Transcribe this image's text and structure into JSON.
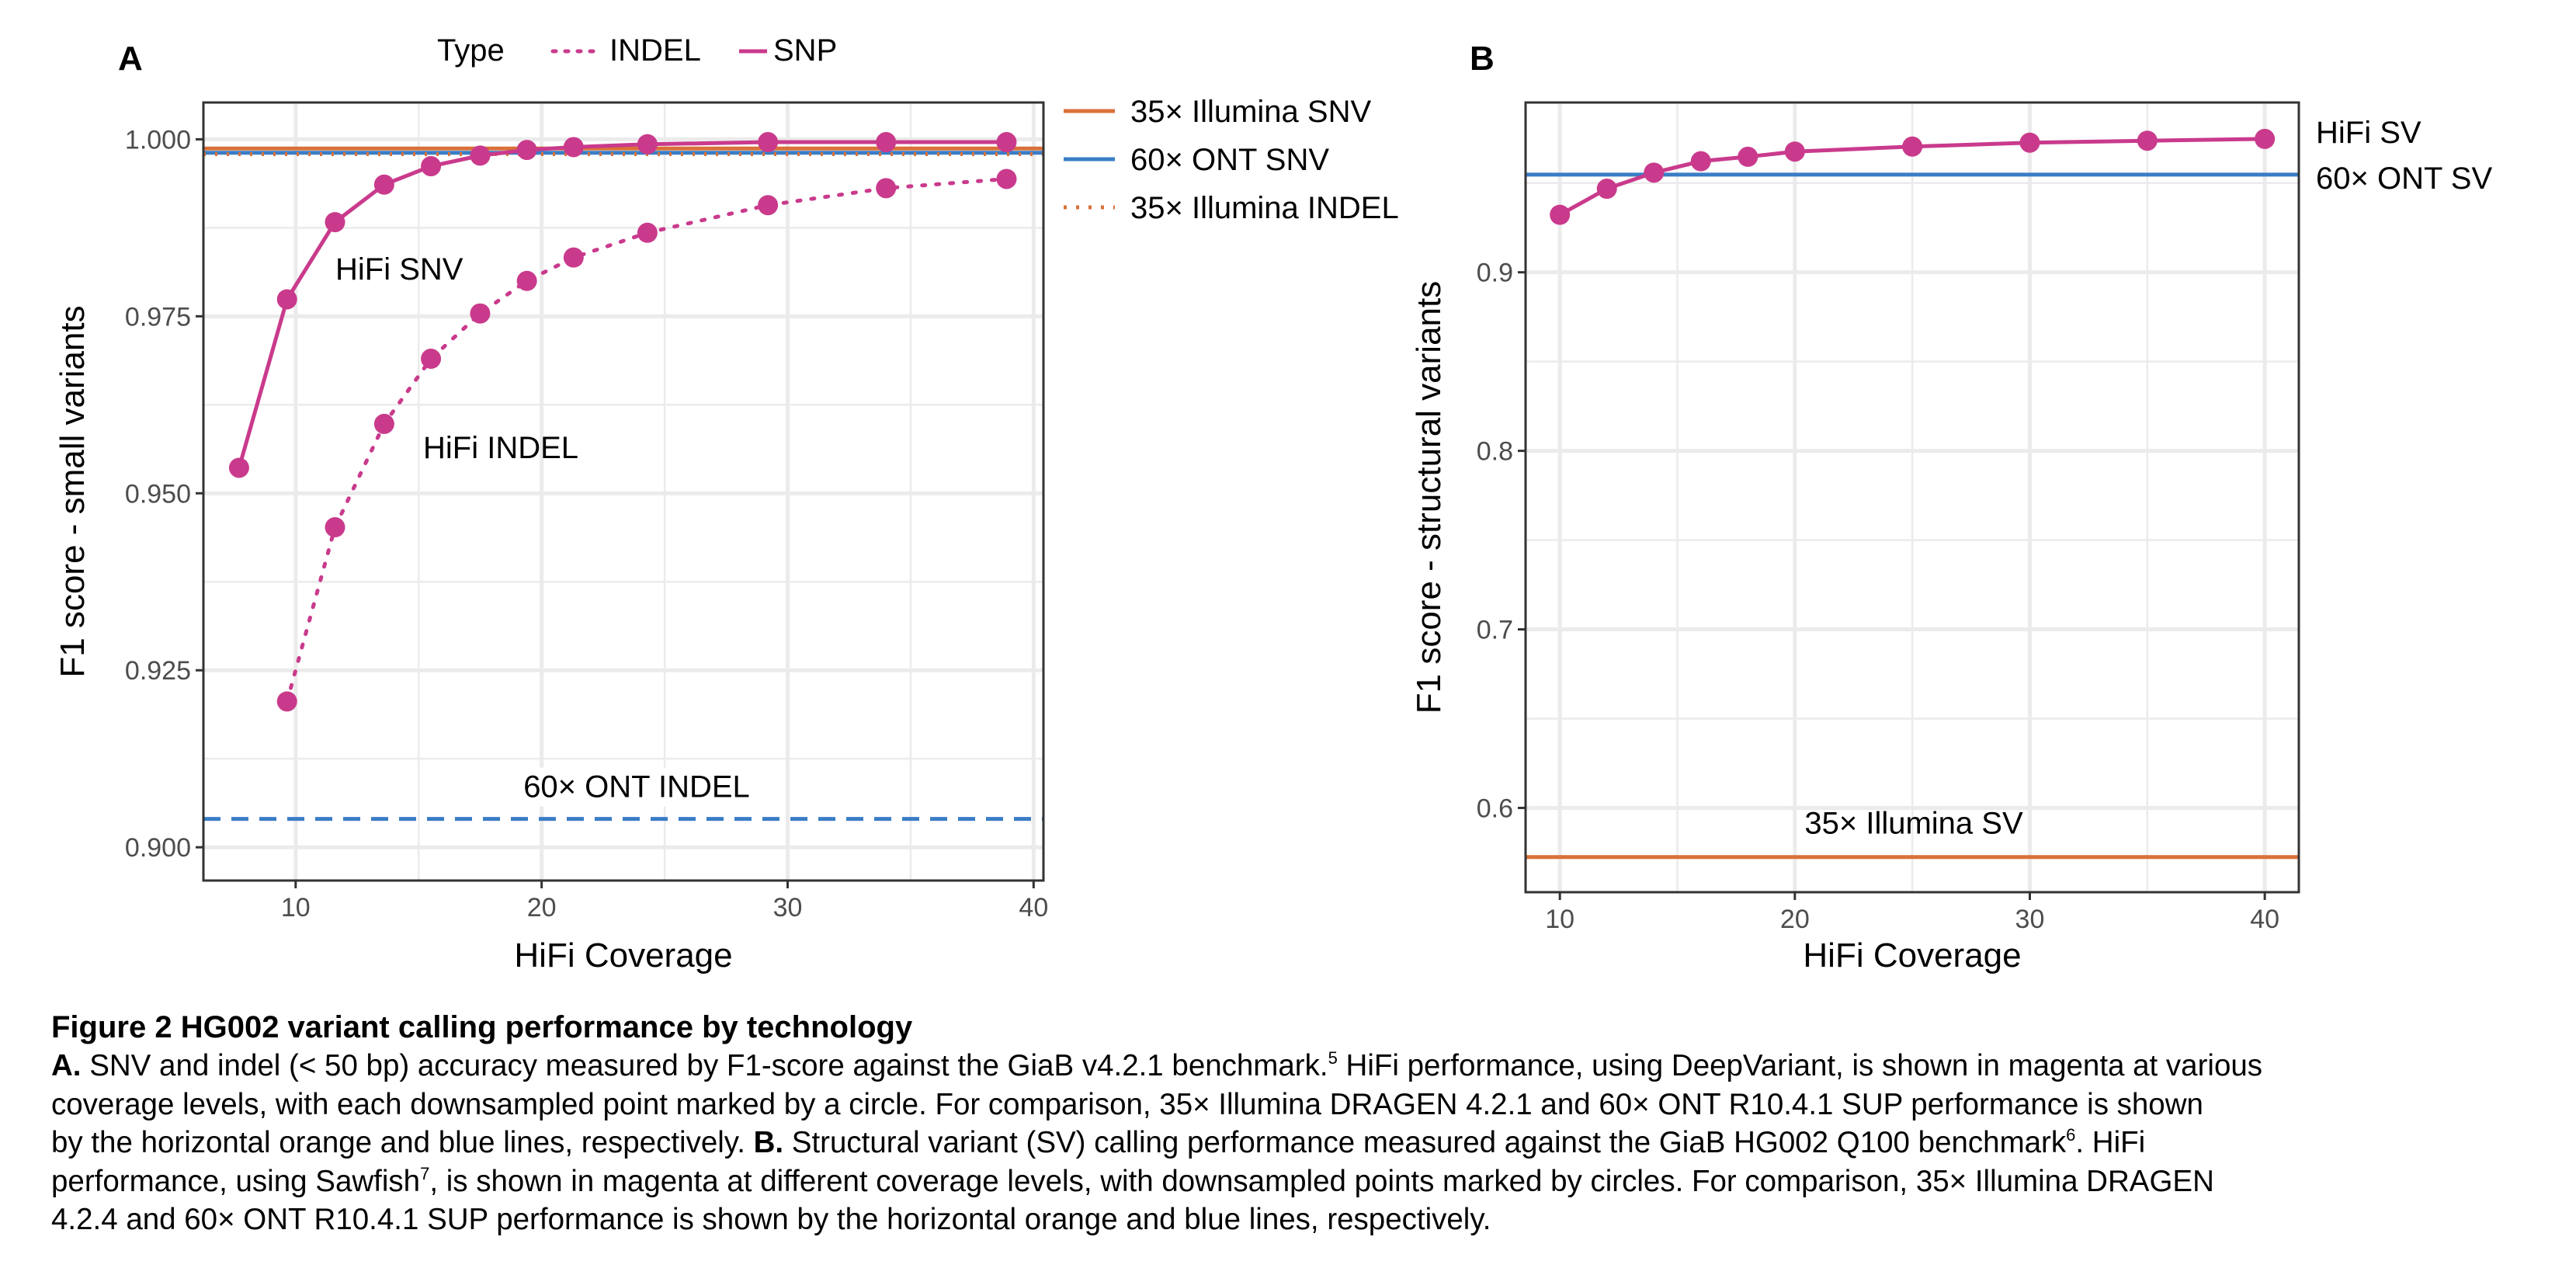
{
  "colors": {
    "hifi": "#C93A8C",
    "illumina": "#D9713A",
    "ont": "#3A7DC5",
    "grid": "#EBEBEB",
    "axis": "#333333",
    "tick_text": "#4D4D4D"
  },
  "type_legend": {
    "title": "Type",
    "items": [
      {
        "label": "INDEL",
        "style": "dotted"
      },
      {
        "label": "SNP",
        "style": "solid"
      }
    ]
  },
  "chart_data": [
    {
      "panel_label": "A",
      "type": "line",
      "xlabel": "HiFi Coverage",
      "ylabel": "F1 score - small variants",
      "xlim": [
        6.25,
        40.4
      ],
      "ylim": [
        0.8953,
        1.0052
      ],
      "xticks": [
        10,
        20,
        30,
        40
      ],
      "yticks": [
        0.9,
        0.925,
        0.95,
        0.975,
        1.0
      ],
      "ytick_labels": [
        "0.900",
        "0.925",
        "0.950",
        "0.975",
        "1.000"
      ],
      "grid": true,
      "series": [
        {
          "name": "SNP",
          "label": "HiFi SNV",
          "style": "solid",
          "x": [
            7.7,
            9.65,
            11.6,
            13.6,
            15.5,
            17.5,
            19.4,
            21.3,
            24.3,
            29.2,
            34.0,
            38.9
          ],
          "y": [
            0.9536,
            0.9774,
            0.9883,
            0.9936,
            0.9962,
            0.9977,
            0.9985,
            0.9989,
            0.9993,
            0.9996,
            0.9996,
            0.9996
          ]
        },
        {
          "name": "INDEL",
          "label": "HiFi INDEL",
          "style": "dotted",
          "x": [
            9.65,
            11.6,
            13.6,
            15.5,
            17.5,
            19.4,
            21.3,
            24.3,
            29.2,
            34.0,
            38.9
          ],
          "y": [
            0.9206,
            0.9452,
            0.9598,
            0.969,
            0.9754,
            0.98,
            0.9833,
            0.9868,
            0.9907,
            0.9931,
            0.9944
          ]
        }
      ],
      "reference_lines": [
        {
          "name": "35× Illumina SNV",
          "y": 0.9987,
          "color": "illumina",
          "style": "solid",
          "in_legend": true
        },
        {
          "name": "60× ONT SNV",
          "y": 0.9981,
          "color": "ont",
          "style": "solid",
          "in_legend": true
        },
        {
          "name": "35× Illumina INDEL",
          "y": 0.9979,
          "color": "illumina",
          "style": "dotted",
          "in_legend": true
        },
        {
          "name": "60× ONT INDEL",
          "y": 0.904,
          "color": "ont",
          "style": "dashed",
          "in_legend": false
        }
      ],
      "legend": "right"
    },
    {
      "panel_label": "B",
      "type": "line",
      "xlabel": "HiFi Coverage",
      "ylabel": "F1 score - structural variants",
      "xlim": [
        8.54,
        41.45
      ],
      "ylim": [
        0.5528,
        0.9951
      ],
      "xticks": [
        10,
        20,
        30,
        40
      ],
      "yticks": [
        0.6,
        0.7,
        0.8,
        0.9
      ],
      "ytick_labels": [
        "0.6",
        "0.7",
        "0.8",
        "0.9"
      ],
      "grid": true,
      "series": [
        {
          "name": "HiFi SV",
          "label": "HiFi SV",
          "style": "solid",
          "x": [
            10,
            12,
            14,
            16,
            18,
            20,
            25,
            30,
            35,
            40
          ],
          "y": [
            0.9322,
            0.9468,
            0.9558,
            0.9622,
            0.9647,
            0.9676,
            0.9704,
            0.9726,
            0.9737,
            0.9747
          ]
        }
      ],
      "reference_lines": [
        {
          "name": "60× ONT SV",
          "y": 0.9547,
          "color": "ont",
          "style": "solid"
        },
        {
          "name": "35× Illumina SV",
          "y": 0.5725,
          "color": "illumina",
          "style": "solid"
        }
      ]
    }
  ],
  "caption": {
    "title": "Figure 2 HG002 variant calling performance by technology",
    "lines": [
      [
        {
          "b": "A."
        },
        {
          "t": " SNV and indel (< 50 bp) accuracy measured by F1-score against the GiaB v4.2.1 benchmark."
        },
        {
          "sup": "5"
        },
        {
          "t": " HiFi performance, using DeepVariant, is shown in magenta at various"
        }
      ],
      [
        {
          "t": "coverage levels, with each downsampled point marked by a circle.  For comparison, 35× Illumina DRAGEN 4.2.1 and 60× ONT R10.4.1 SUP performance is shown"
        }
      ],
      [
        {
          "t": "by the horizontal orange and blue lines, respectively. "
        },
        {
          "b": "B."
        },
        {
          "t": " Structural variant (SV) calling performance measured against the GiaB HG002 Q100 benchmark"
        },
        {
          "sup": "6"
        },
        {
          "t": ".  HiFi"
        }
      ],
      [
        {
          "t": "performance, using Sawfish"
        },
        {
          "sup": "7"
        },
        {
          "t": ", is shown in magenta at different coverage levels, with downsampled points marked by circles. For comparison, 35× Illumina DRAGEN"
        }
      ],
      [
        {
          "t": "4.2.4 and 60× ONT R10.4.1 SUP performance is shown by the horizontal orange and blue lines, respectively."
        }
      ]
    ]
  }
}
